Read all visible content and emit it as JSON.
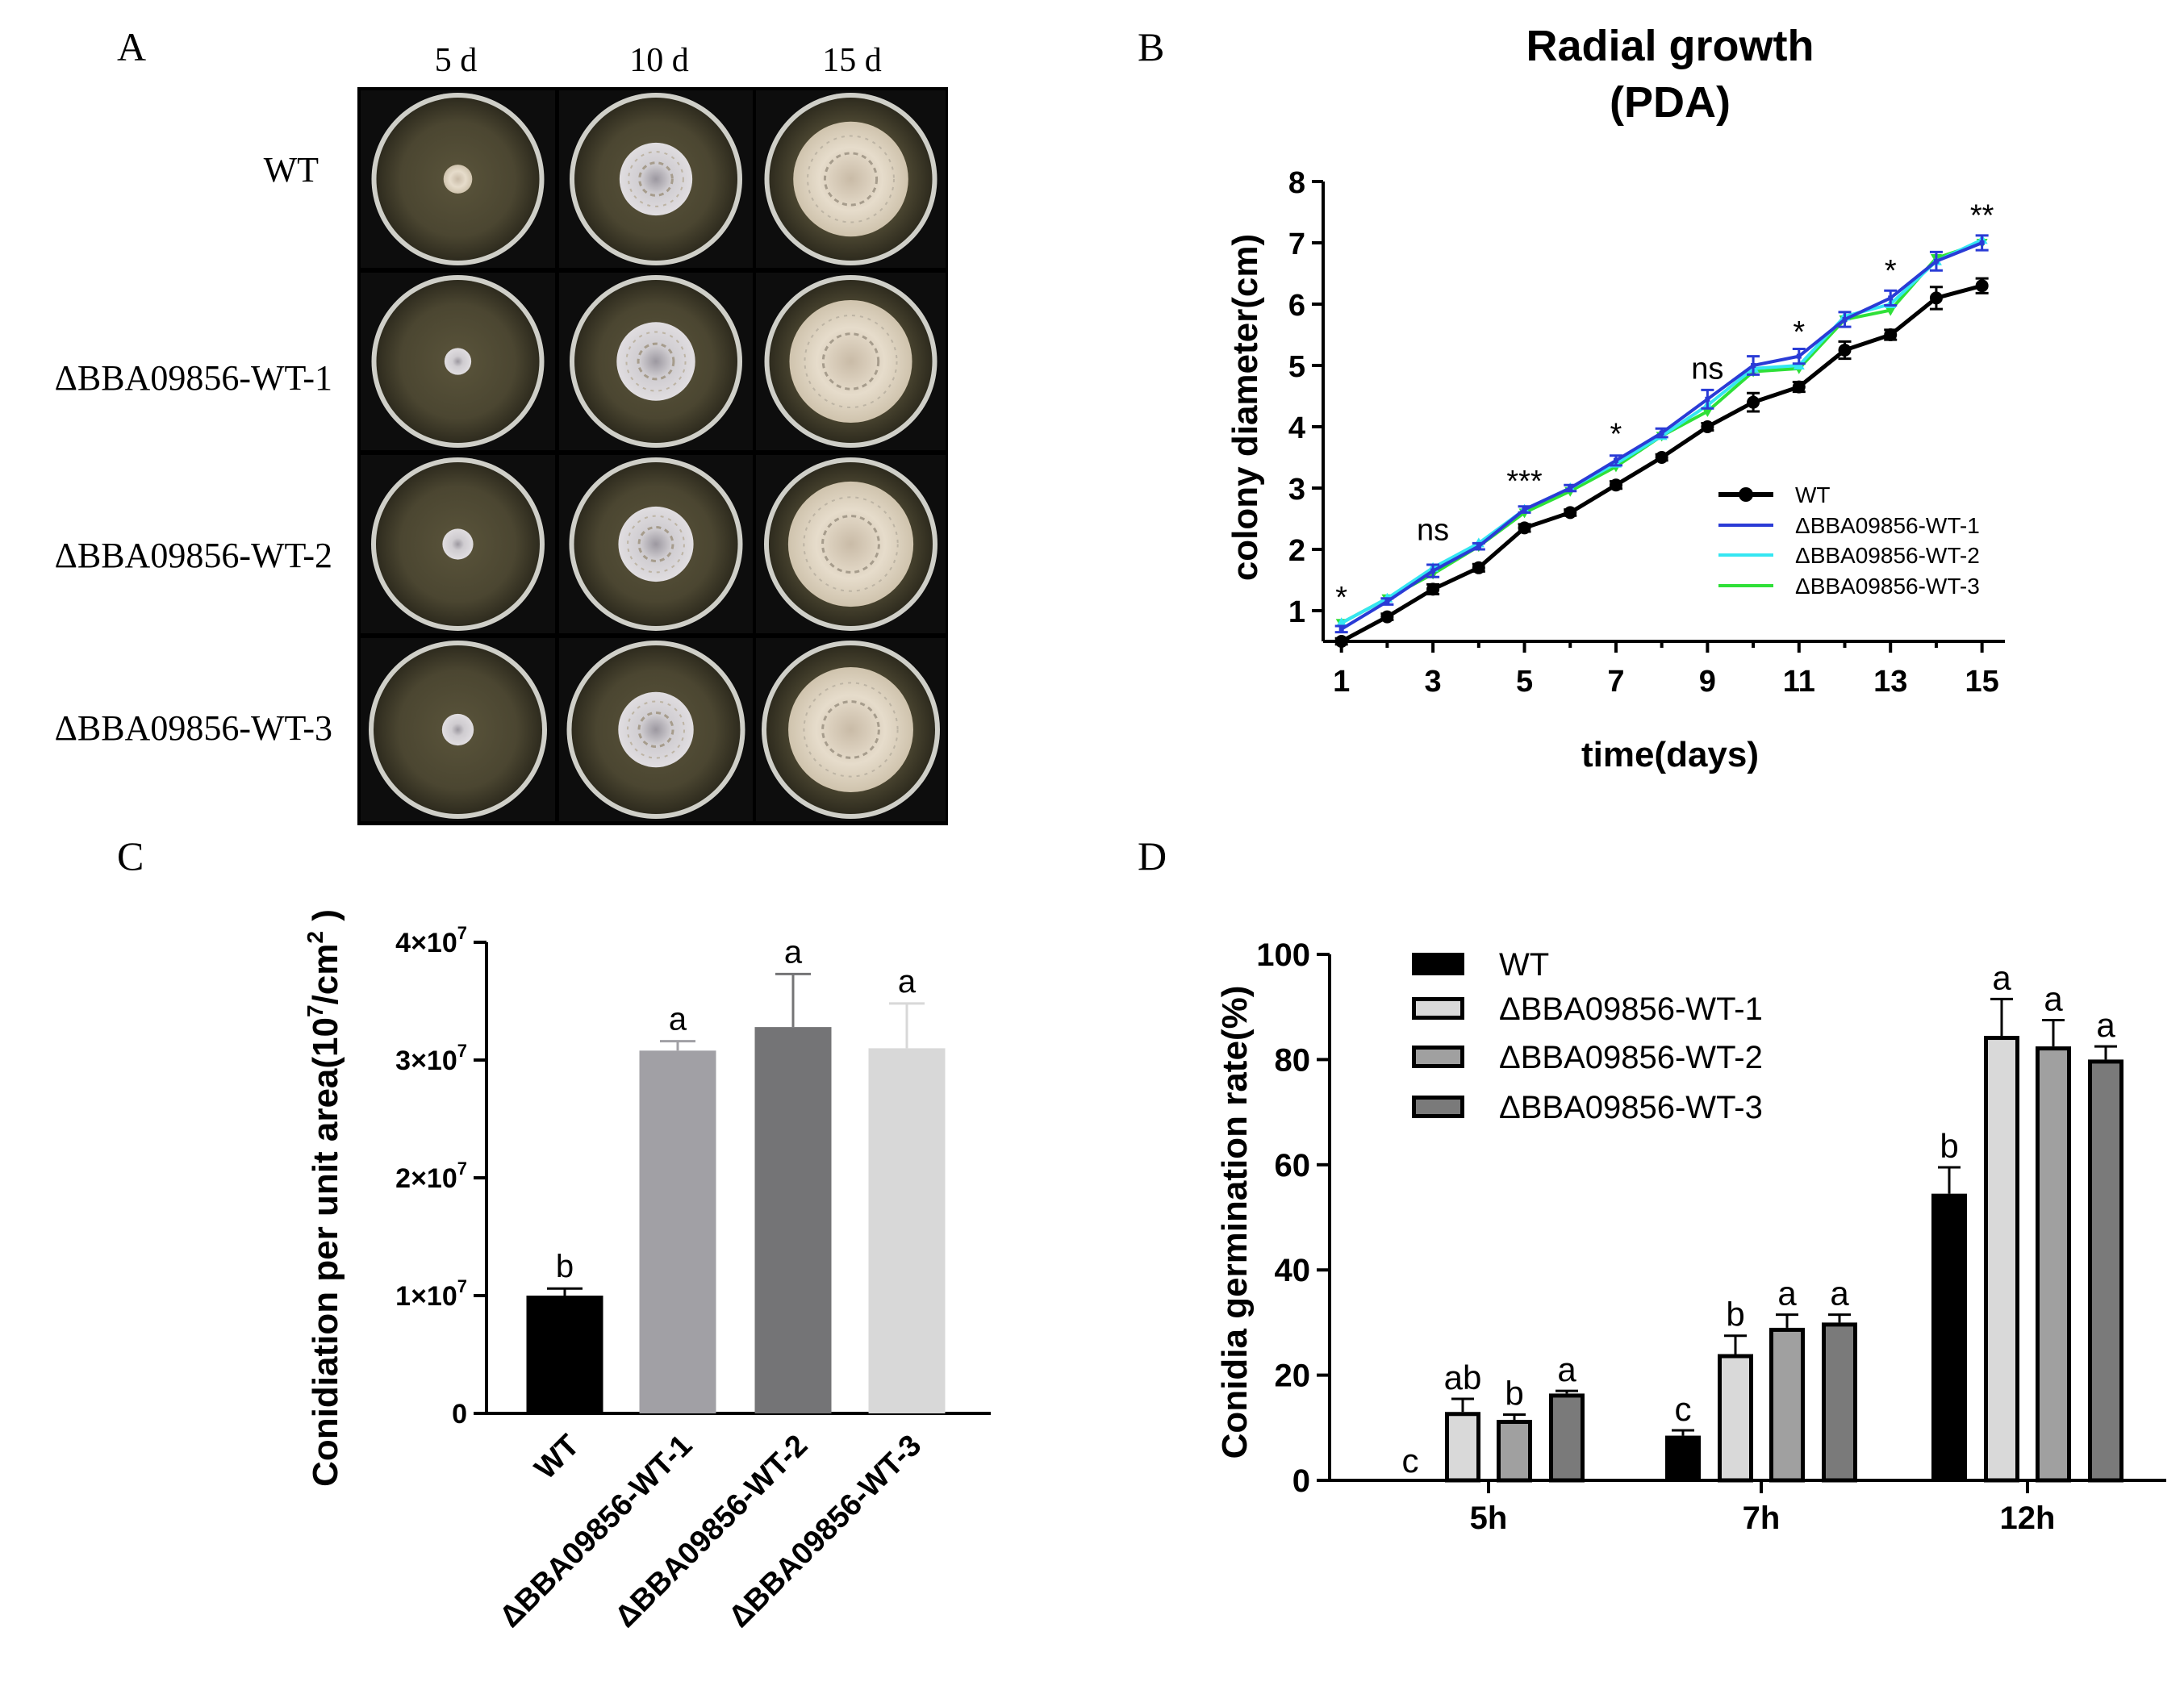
{
  "panel_letters": {
    "a": "A",
    "b": "B",
    "c": "C",
    "d": "D"
  },
  "colors": {
    "wt": "#000000",
    "m1": "#2a3bd6",
    "m2": "#35e6f2",
    "m3": "#2fe038",
    "barC": [
      "#000000",
      "#a1a0a5",
      "#747476",
      "#d8d8d8"
    ],
    "barD": [
      "#000000",
      "#d9d9d9",
      "#a0a0a0",
      "#7a7a7a"
    ]
  },
  "chart_data": [
    {
      "id": "A",
      "type": "image-grid",
      "column_labels": [
        "5 d",
        "10 d",
        "15 d"
      ],
      "row_labels": [
        "WT",
        "ΔBBA09856-WT-1",
        "ΔBBA09856-WT-2",
        "ΔBBA09856-WT-3"
      ],
      "colony_diameter_cm": [
        [
          1.5,
          3.8,
          6.0
        ],
        [
          1.4,
          4.1,
          6.4
        ],
        [
          1.6,
          3.9,
          6.5
        ],
        [
          1.6,
          3.8,
          6.3
        ]
      ]
    },
    {
      "id": "B",
      "type": "line",
      "title": "Radial growth",
      "subtitle": "(PDA)",
      "xlabel": "time(days)",
      "ylabel": "colony diameter(cm)",
      "xlim": [
        0.6,
        15.5
      ],
      "ylim": [
        0.5,
        8
      ],
      "xticks": [
        1,
        3,
        5,
        7,
        9,
        11,
        13,
        15
      ],
      "yticks": [
        1,
        2,
        3,
        4,
        5,
        6,
        7,
        8
      ],
      "x": [
        1,
        2,
        3,
        4,
        5,
        6,
        7,
        8,
        9,
        10,
        11,
        12,
        13,
        14,
        15
      ],
      "series": [
        {
          "name": "WT",
          "values": [
            0.5,
            0.9,
            1.35,
            1.7,
            2.35,
            2.6,
            3.05,
            3.5,
            4.0,
            4.4,
            4.65,
            5.25,
            5.5,
            6.1,
            6.3
          ],
          "error": [
            0.05,
            0.05,
            0.08,
            0.06,
            0.06,
            0.05,
            0.06,
            0.05,
            0.06,
            0.15,
            0.08,
            0.14,
            0.08,
            0.18,
            0.12
          ]
        },
        {
          "name": "ΔBBA09856-WT-1",
          "values": [
            0.7,
            1.15,
            1.65,
            2.05,
            2.65,
            3.0,
            3.45,
            3.9,
            4.45,
            5.0,
            5.15,
            5.75,
            6.1,
            6.7,
            7.0
          ],
          "error": [
            0.05,
            0.05,
            0.1,
            0.05,
            0.05,
            0.05,
            0.08,
            0.07,
            0.15,
            0.15,
            0.12,
            0.12,
            0.12,
            0.15,
            0.12
          ]
        },
        {
          "name": "ΔBBA09856-WT-2",
          "values": [
            0.8,
            1.2,
            1.7,
            2.1,
            2.65,
            3.0,
            3.4,
            3.85,
            4.35,
            4.95,
            5.0,
            5.8,
            6.0,
            6.7,
            7.05
          ]
        },
        {
          "name": "ΔBBA09856-WT-3",
          "values": [
            0.8,
            1.2,
            1.6,
            2.05,
            2.6,
            2.95,
            3.35,
            3.85,
            4.25,
            4.9,
            4.95,
            5.75,
            5.9,
            6.75,
            7.0
          ]
        }
      ],
      "annotations": [
        {
          "x": 1,
          "text": "*",
          "y": 1.05
        },
        {
          "x": 3,
          "text": "ns",
          "y": 2.15
        },
        {
          "x": 5,
          "text": "***",
          "y": 2.95
        },
        {
          "x": 7,
          "text": "*",
          "y": 3.72
        },
        {
          "x": 9,
          "text": "ns",
          "y": 4.78
        },
        {
          "x": 11,
          "text": "*",
          "y": 5.38
        },
        {
          "x": 13,
          "text": "*",
          "y": 6.38
        },
        {
          "x": 15,
          "text": "**",
          "y": 7.28
        }
      ],
      "legend": "right"
    },
    {
      "id": "C",
      "type": "bar",
      "ylabel_main": "Conidiation per unit area(10",
      "ylabel_sup": "7",
      "ylabel_tail": "/cm",
      "ylabel_sup2": "2",
      "ylabel_end": " )",
      "categories": [
        "WT",
        "ΔBBA09856-WT-1",
        "ΔBBA09856-WT-2",
        "ΔBBA09856-WT-3"
      ],
      "values": [
        10000000,
        30800000,
        32800000,
        31000000
      ],
      "errors": [
        600000,
        800000,
        4500000,
        3800000
      ],
      "letters": [
        "b",
        "a",
        "a",
        "a"
      ],
      "ylim": [
        0,
        40000000
      ],
      "ytick_labels": [
        "0",
        "1×10",
        "2×10",
        "3×10",
        "4×10"
      ],
      "ytick_exp": "7"
    },
    {
      "id": "D",
      "type": "bar",
      "ylabel": "Conidia germination rate(%)",
      "categories": [
        "5h",
        "7h",
        "12h"
      ],
      "ylim": [
        0,
        100
      ],
      "yticks": [
        "0",
        "20",
        "40",
        "60",
        "80",
        "100"
      ],
      "series": [
        {
          "name": "WT",
          "values": [
            0,
            8.5,
            54.5
          ],
          "errors": [
            0,
            1.0,
            5.0
          ],
          "letters": [
            "c",
            "c",
            "b"
          ]
        },
        {
          "name": "ΔBBA09856-WT-1",
          "values": [
            13,
            24,
            84.5
          ],
          "errors": [
            2.5,
            3.5,
            7.0
          ],
          "letters": [
            "ab",
            "b",
            "a"
          ]
        },
        {
          "name": "ΔBBA09856-WT-2",
          "values": [
            11.5,
            29,
            82.5
          ],
          "errors": [
            1.0,
            2.5,
            5.0
          ],
          "letters": [
            "b",
            "a",
            "a"
          ]
        },
        {
          "name": "ΔBBA09856-WT-3",
          "values": [
            16.5,
            30,
            80
          ],
          "errors": [
            0.5,
            1.5,
            2.5
          ],
          "letters": [
            "a",
            "a",
            "a"
          ]
        }
      ],
      "legend": "top-left"
    }
  ]
}
